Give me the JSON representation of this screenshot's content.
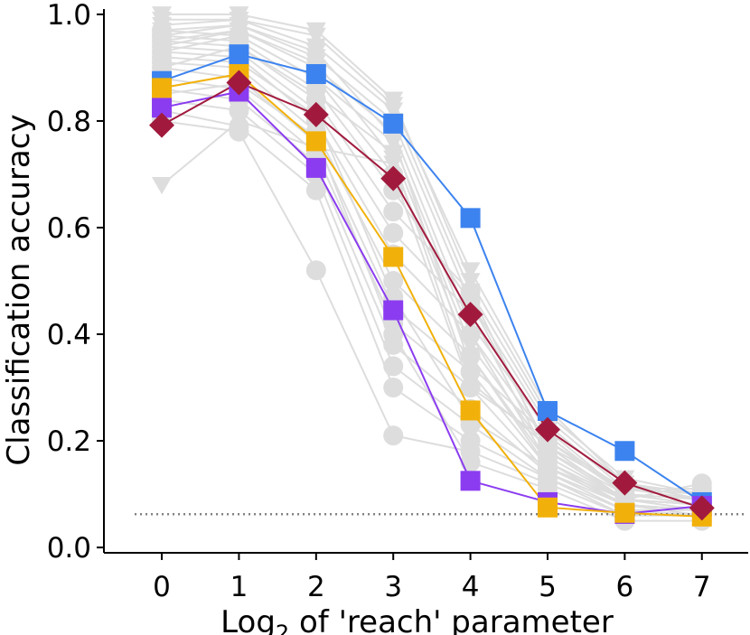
{
  "chart_data": {
    "type": "line",
    "title": "",
    "xlabel": "Log₂ of 'reach' parameter",
    "xlabel_parts": {
      "prefix": "Log",
      "subscript": "2",
      "suffix": " of 'reach' parameter"
    },
    "ylabel": "Classification accuracy",
    "xlim": [
      -0.75,
      7.6
    ],
    "ylim": [
      -0.01,
      1.01
    ],
    "x": [
      0,
      1,
      2,
      3,
      4,
      5,
      6,
      7
    ],
    "x_ticks": [
      0,
      1,
      2,
      3,
      4,
      5,
      6,
      7
    ],
    "x_tick_labels": [
      "0",
      "1",
      "2",
      "3",
      "4",
      "5",
      "6",
      "7"
    ],
    "y_ticks": [
      0.0,
      0.2,
      0.4,
      0.6,
      0.8,
      1.0
    ],
    "y_tick_labels": [
      "0.0",
      "0.2",
      "0.4",
      "0.6",
      "0.8",
      "1.0"
    ],
    "grid": false,
    "reference_line": {
      "y": 0.0625,
      "style": "dotted",
      "color": "#808080"
    },
    "background_series_color": "#dddddd",
    "background_series": [
      {
        "marker": "circle",
        "values": [
          0.8,
          0.78,
          0.52,
          0.21,
          0.18,
          0.12,
          0.06,
          0.06
        ]
      },
      {
        "marker": "circle",
        "values": [
          0.82,
          0.79,
          0.67,
          0.3,
          0.2,
          0.13,
          0.06,
          0.06
        ]
      },
      {
        "marker": "circle",
        "values": [
          0.84,
          0.82,
          0.7,
          0.34,
          0.23,
          0.13,
          0.07,
          0.07
        ]
      },
      {
        "marker": "circle",
        "values": [
          0.86,
          0.84,
          0.72,
          0.38,
          0.26,
          0.14,
          0.07,
          0.06
        ]
      },
      {
        "marker": "circle",
        "values": [
          0.88,
          0.86,
          0.74,
          0.42,
          0.3,
          0.14,
          0.08,
          0.07
        ]
      },
      {
        "marker": "circle",
        "values": [
          0.9,
          0.88,
          0.76,
          0.45,
          0.33,
          0.15,
          0.08,
          0.06
        ]
      },
      {
        "marker": "circle",
        "values": [
          0.91,
          0.9,
          0.78,
          0.5,
          0.36,
          0.15,
          0.08,
          0.07
        ]
      },
      {
        "marker": "circle",
        "values": [
          0.93,
          0.92,
          0.8,
          0.55,
          0.4,
          0.16,
          0.09,
          0.08
        ]
      },
      {
        "marker": "circle",
        "values": [
          0.94,
          0.93,
          0.82,
          0.59,
          0.44,
          0.17,
          0.09,
          0.08
        ]
      },
      {
        "marker": "circle",
        "values": [
          0.95,
          0.94,
          0.84,
          0.63,
          0.48,
          0.18,
          0.1,
          0.09
        ]
      },
      {
        "marker": "circle",
        "values": [
          0.96,
          0.95,
          0.86,
          0.67,
          0.46,
          0.19,
          0.11,
          0.1
        ]
      },
      {
        "marker": "circle",
        "values": [
          0.97,
          0.96,
          0.88,
          0.7,
          0.3,
          0.2,
          0.11,
          0.11
        ]
      },
      {
        "marker": "circle",
        "values": [
          0.92,
          0.91,
          0.81,
          0.47,
          0.24,
          0.15,
          0.09,
          0.12
        ]
      },
      {
        "marker": "circle",
        "values": [
          0.85,
          0.87,
          0.77,
          0.4,
          0.16,
          0.11,
          0.05,
          0.05
        ]
      },
      {
        "marker": "triangle",
        "values": [
          0.68,
          0.8,
          0.75,
          0.72,
          0.36,
          0.16,
          0.08,
          0.07
        ]
      },
      {
        "marker": "triangle",
        "values": [
          0.9,
          0.94,
          0.85,
          0.74,
          0.38,
          0.18,
          0.09,
          0.08
        ]
      },
      {
        "marker": "triangle",
        "values": [
          0.93,
          0.96,
          0.88,
          0.76,
          0.4,
          0.2,
          0.1,
          0.08
        ]
      },
      {
        "marker": "triangle",
        "values": [
          0.95,
          0.97,
          0.9,
          0.78,
          0.42,
          0.22,
          0.1,
          0.09
        ]
      },
      {
        "marker": "triangle",
        "values": [
          0.97,
          0.98,
          0.92,
          0.8,
          0.46,
          0.23,
          0.11,
          0.09
        ]
      },
      {
        "marker": "triangle",
        "values": [
          0.99,
          0.99,
          0.94,
          0.82,
          0.48,
          0.24,
          0.12,
          0.1
        ]
      },
      {
        "marker": "triangle",
        "values": [
          1.0,
          1.0,
          0.97,
          0.84,
          0.5,
          0.25,
          0.13,
          0.1
        ]
      },
      {
        "marker": "triangle",
        "values": [
          0.98,
          0.99,
          0.96,
          0.83,
          0.52,
          0.26,
          0.12,
          0.09
        ]
      },
      {
        "marker": "triangle",
        "values": [
          0.96,
          0.98,
          0.93,
          0.77,
          0.34,
          0.21,
          0.1,
          0.08
        ]
      },
      {
        "marker": "triangle",
        "values": [
          0.94,
          0.97,
          0.91,
          0.73,
          0.31,
          0.19,
          0.09,
          0.07
        ]
      }
    ],
    "series": [
      {
        "name": "blue",
        "color": "#3c83ef",
        "marker": "square",
        "values": [
          0.875,
          0.925,
          0.888,
          0.795,
          0.618,
          0.256,
          0.181,
          0.085
        ]
      },
      {
        "name": "purple",
        "color": "#8b3cf0",
        "marker": "square",
        "values": [
          0.825,
          0.855,
          0.712,
          0.445,
          0.125,
          0.085,
          0.063,
          0.078
        ]
      },
      {
        "name": "orange",
        "color": "#f2b10a",
        "marker": "square",
        "values": [
          0.862,
          0.888,
          0.762,
          0.545,
          0.257,
          0.075,
          0.065,
          0.058
        ]
      },
      {
        "name": "red",
        "color": "#a11a3d",
        "marker": "diamond",
        "values": [
          0.792,
          0.872,
          0.812,
          0.692,
          0.437,
          0.221,
          0.121,
          0.074
        ]
      }
    ]
  }
}
